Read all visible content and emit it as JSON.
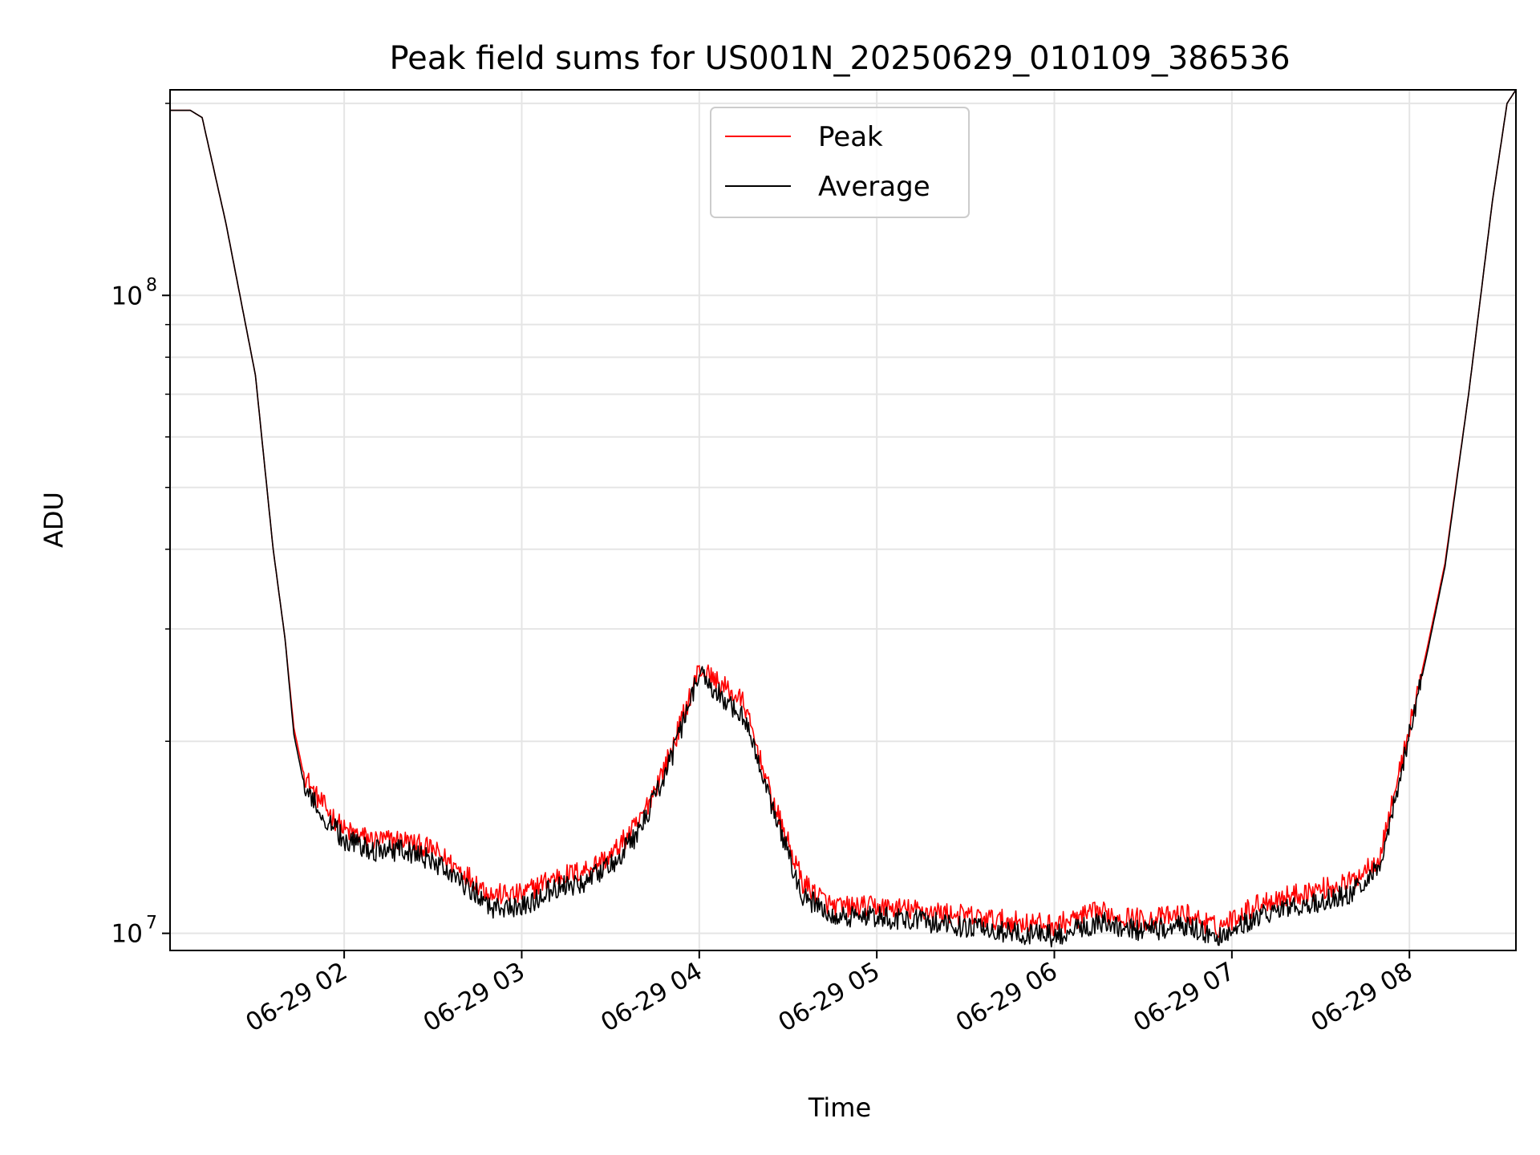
{
  "chart_data": {
    "type": "line",
    "title": "Peak field sums for US001N_20250629_010109_386536",
    "xlabel": "Time",
    "ylabel": "ADU",
    "x_axis": "datetime",
    "xlim": [
      "2025-06-29T01:01:09",
      "2025-06-29T08:36:00"
    ],
    "y_scale": "log",
    "ylim": [
      9400000,
      210000000
    ],
    "yticks_major": [
      {
        "value": 10000000,
        "base": "10",
        "exp": "7"
      },
      {
        "value": 100000000,
        "base": "10",
        "exp": "8"
      }
    ],
    "yticks_minor": [
      20000000,
      30000000,
      40000000,
      50000000,
      60000000,
      70000000,
      80000000,
      90000000,
      200000000
    ],
    "xticks": [
      {
        "value": "2025-06-29T02:00:00",
        "label": "06-29 02"
      },
      {
        "value": "2025-06-29T03:00:00",
        "label": "06-29 03"
      },
      {
        "value": "2025-06-29T04:00:00",
        "label": "06-29 04"
      },
      {
        "value": "2025-06-29T05:00:00",
        "label": "06-29 05"
      },
      {
        "value": "2025-06-29T06:00:00",
        "label": "06-29 06"
      },
      {
        "value": "2025-06-29T07:00:00",
        "label": "06-29 07"
      },
      {
        "value": "2025-06-29T08:00:00",
        "label": "06-29 08"
      }
    ],
    "grid": true,
    "legend_position": "upper-center",
    "series": [
      {
        "name": "Peak",
        "color": "#ff0000",
        "x": [
          "2025-06-29T01:01:09",
          "2025-06-29T01:08:00",
          "2025-06-29T01:12:00",
          "2025-06-29T01:20:00",
          "2025-06-29T01:30:00",
          "2025-06-29T01:36:00",
          "2025-06-29T01:40:00",
          "2025-06-29T01:43:00",
          "2025-06-29T01:46:00",
          "2025-06-29T01:50:00",
          "2025-06-29T02:00:00",
          "2025-06-29T02:10:00",
          "2025-06-29T02:20:00",
          "2025-06-29T02:30:00",
          "2025-06-29T02:40:00",
          "2025-06-29T02:50:00",
          "2025-06-29T03:00:00",
          "2025-06-29T03:10:00",
          "2025-06-29T03:20:00",
          "2025-06-29T03:30:00",
          "2025-06-29T03:40:00",
          "2025-06-29T03:50:00",
          "2025-06-29T04:00:00",
          "2025-06-29T04:05:00",
          "2025-06-29T04:10:00",
          "2025-06-29T04:15:00",
          "2025-06-29T04:25:00",
          "2025-06-29T04:35:00",
          "2025-06-29T04:45:00",
          "2025-06-29T05:00:00",
          "2025-06-29T05:20:00",
          "2025-06-29T05:40:00",
          "2025-06-29T06:00:00",
          "2025-06-29T06:15:00",
          "2025-06-29T06:30:00",
          "2025-06-29T06:45:00",
          "2025-06-29T06:55:00",
          "2025-06-29T07:10:00",
          "2025-06-29T07:25:00",
          "2025-06-29T07:40:00",
          "2025-06-29T07:50:00",
          "2025-06-29T08:00:00",
          "2025-06-29T08:06:00",
          "2025-06-29T08:12:00",
          "2025-06-29T08:20:00",
          "2025-06-29T08:28:00",
          "2025-06-29T08:33:00",
          "2025-06-29T08:36:00"
        ],
        "y": [
          195000000,
          195000000,
          190000000,
          130000000,
          75000000,
          40000000,
          29000000,
          21000000,
          18000000,
          16500000,
          14500000,
          14000000,
          14000000,
          13500000,
          12500000,
          11500000,
          11500000,
          12200000,
          12500000,
          13200000,
          15000000,
          19000000,
          26000000,
          25000000,
          24000000,
          23000000,
          16000000,
          12000000,
          11000000,
          11000000,
          10800000,
          10500000,
          10300000,
          10800000,
          10500000,
          10700000,
          10200000,
          11200000,
          11600000,
          12000000,
          13200000,
          21000000,
          28000000,
          38000000,
          70000000,
          140000000,
          200000000,
          210000000
        ]
      },
      {
        "name": "Average",
        "color": "#000000",
        "x": [
          "2025-06-29T01:01:09",
          "2025-06-29T01:08:00",
          "2025-06-29T01:12:00",
          "2025-06-29T01:20:00",
          "2025-06-29T01:30:00",
          "2025-06-29T01:36:00",
          "2025-06-29T01:40:00",
          "2025-06-29T01:43:00",
          "2025-06-29T01:46:00",
          "2025-06-29T01:50:00",
          "2025-06-29T02:00:00",
          "2025-06-29T02:10:00",
          "2025-06-29T02:20:00",
          "2025-06-29T02:30:00",
          "2025-06-29T02:40:00",
          "2025-06-29T02:50:00",
          "2025-06-29T03:00:00",
          "2025-06-29T03:10:00",
          "2025-06-29T03:20:00",
          "2025-06-29T03:30:00",
          "2025-06-29T03:40:00",
          "2025-06-29T03:50:00",
          "2025-06-29T04:00:00",
          "2025-06-29T04:05:00",
          "2025-06-29T04:10:00",
          "2025-06-29T04:15:00",
          "2025-06-29T04:25:00",
          "2025-06-29T04:35:00",
          "2025-06-29T04:45:00",
          "2025-06-29T05:00:00",
          "2025-06-29T05:20:00",
          "2025-06-29T05:40:00",
          "2025-06-29T06:00:00",
          "2025-06-29T06:15:00",
          "2025-06-29T06:30:00",
          "2025-06-29T06:45:00",
          "2025-06-29T06:55:00",
          "2025-06-29T07:10:00",
          "2025-06-29T07:25:00",
          "2025-06-29T07:40:00",
          "2025-06-29T07:50:00",
          "2025-06-29T08:00:00",
          "2025-06-29T08:06:00",
          "2025-06-29T08:12:00",
          "2025-06-29T08:20:00",
          "2025-06-29T08:28:00",
          "2025-06-29T08:33:00",
          "2025-06-29T08:36:00"
        ],
        "y": [
          195000000,
          195000000,
          190000000,
          130000000,
          75000000,
          40000000,
          29000000,
          20500000,
          17500000,
          16000000,
          14000000,
          13500000,
          13500000,
          13000000,
          12000000,
          11000000,
          11000000,
          11700000,
          12000000,
          12700000,
          14500000,
          18500000,
          25500000,
          24000000,
          23000000,
          22000000,
          15500000,
          11500000,
          10600000,
          10600000,
          10400000,
          10100000,
          9900000,
          10400000,
          10100000,
          10300000,
          9800000,
          10700000,
          11100000,
          11500000,
          12700000,
          20500000,
          27500000,
          37500000,
          70000000,
          140000000,
          200000000,
          210000000
        ]
      }
    ]
  }
}
